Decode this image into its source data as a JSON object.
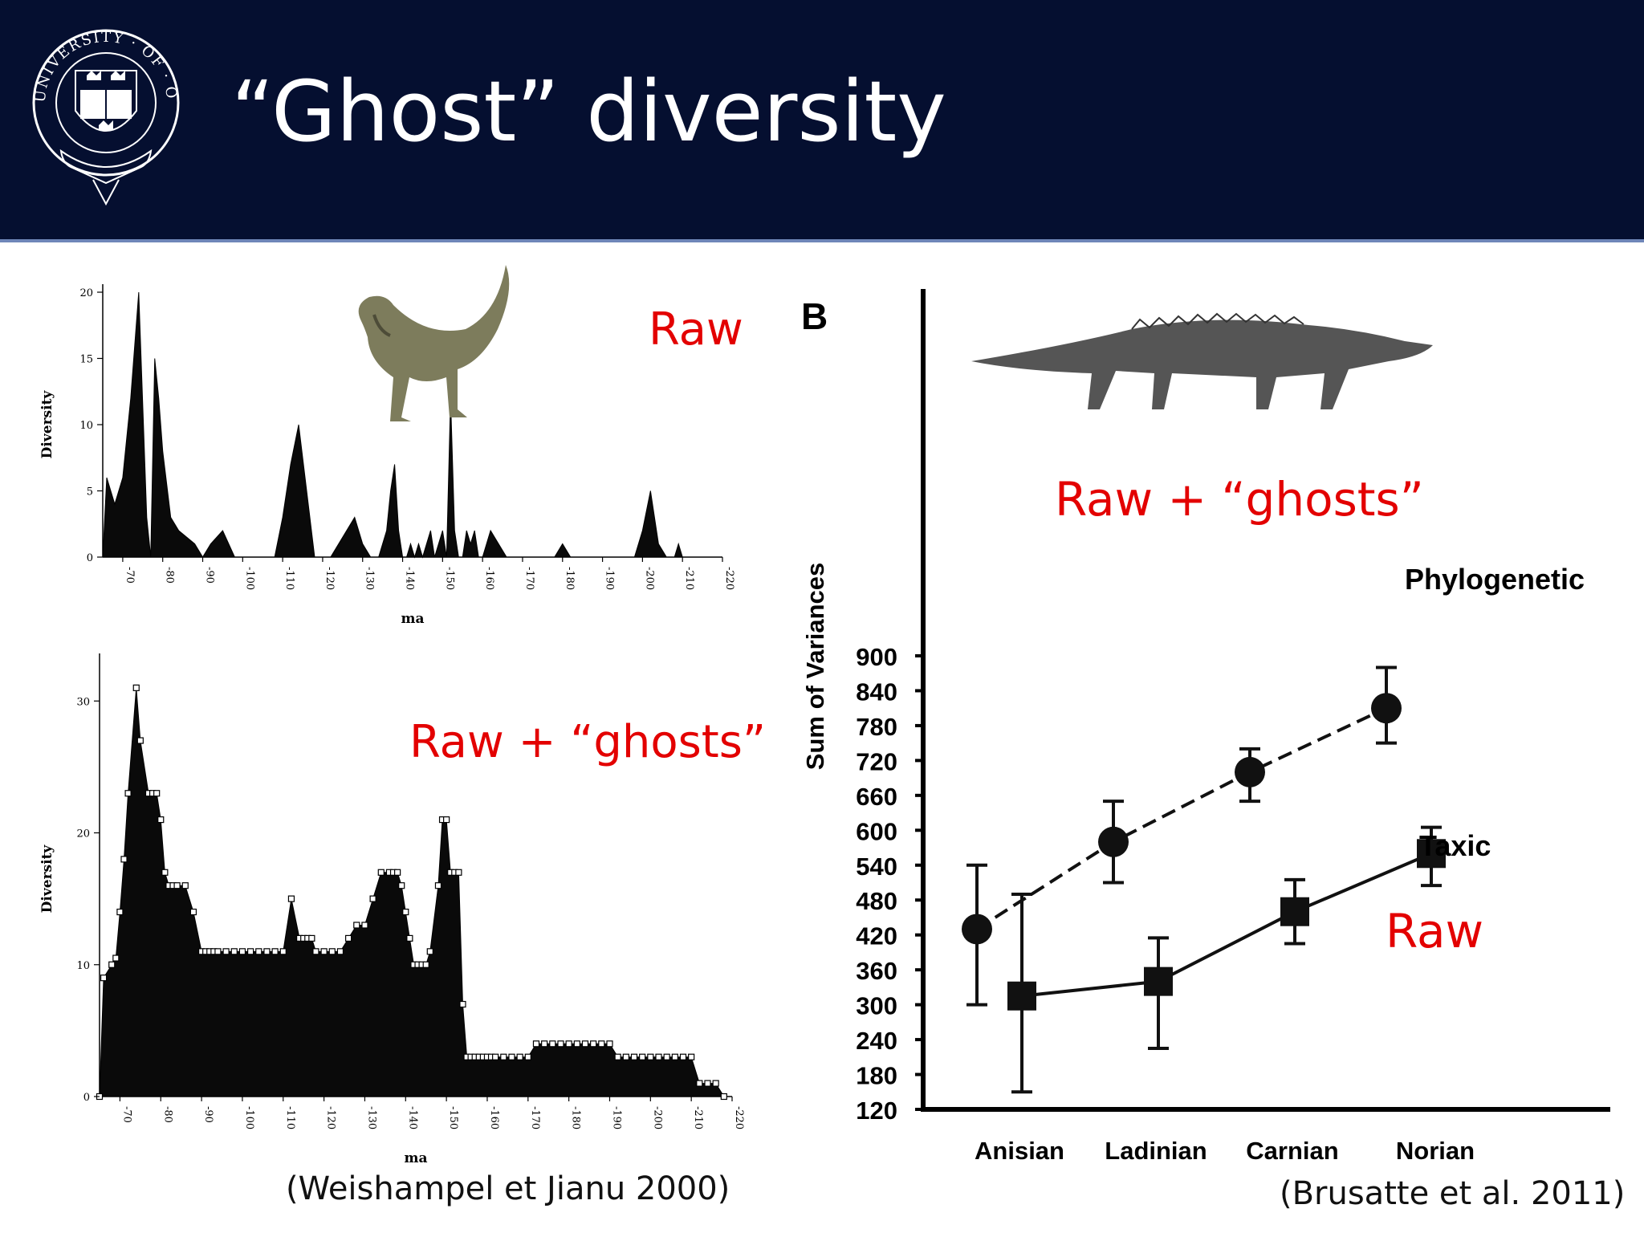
{
  "slide": {
    "title": "“Ghost” diversity",
    "logo_ring_text": "UNIVERSITY · OF · OXFORD",
    "logo_book_text": [
      "DOMI",
      "NVS",
      "ILLV",
      "MINA",
      "TIO",
      "MEA"
    ],
    "header_bg": "#050f30",
    "annotation_color": "#e30000"
  },
  "annotations": {
    "raw_top": "Raw",
    "ghosts_bottom": "Raw + “ghosts”",
    "ghosts_right": "Raw + “ghosts”",
    "raw_right": "Raw"
  },
  "citations": {
    "left": "(Weishampel et Jianu 2000)",
    "right": "(Brusatte et al. 2011)"
  },
  "chart_data": [
    {
      "type": "area",
      "xlabel": "ma",
      "ylabel": "Diversity",
      "xlim": [
        65,
        220
      ],
      "ylim": [
        0,
        20
      ],
      "x_ticks": [
        "70",
        "80",
        "90",
        "100",
        "110",
        "120",
        "130",
        "140",
        "150",
        "160",
        "170",
        "180",
        "190",
        "200",
        "210",
        "220"
      ],
      "y_ticks": [
        "0",
        "5",
        "10",
        "15",
        "20"
      ],
      "x": [
        65,
        66,
        68,
        70,
        72,
        74,
        76,
        77,
        78,
        79,
        80,
        82,
        84,
        88,
        90,
        92,
        95,
        98,
        100,
        101,
        102,
        103,
        104,
        106,
        108,
        110,
        112,
        114,
        116,
        118,
        120,
        121,
        122,
        124,
        126,
        128,
        130,
        132,
        133,
        134,
        136,
        137,
        138,
        139,
        140,
        141,
        142,
        143,
        144,
        145,
        146,
        147,
        148,
        149,
        150,
        151,
        152,
        153,
        154,
        155,
        156,
        157,
        158,
        159,
        160,
        162,
        164,
        166,
        168,
        170,
        175,
        178,
        180,
        182,
        184,
        186,
        188,
        190,
        192,
        194,
        196,
        198,
        200,
        202,
        204,
        206,
        207,
        208,
        209,
        210,
        212,
        215,
        220
      ],
      "values": [
        0,
        6,
        4,
        6,
        12,
        20,
        3,
        0,
        15,
        12,
        8,
        3,
        2,
        1,
        0,
        1,
        2,
        0,
        0,
        0,
        0,
        0,
        0,
        0,
        0,
        3,
        7,
        10,
        5,
        0,
        0,
        0,
        0,
        1,
        2,
        3,
        1,
        0,
        0,
        0,
        2,
        5,
        7,
        2,
        0,
        0,
        1,
        0,
        1,
        0,
        1,
        2,
        0,
        1,
        2,
        0,
        12,
        2,
        0,
        0,
        2,
        1,
        2,
        0,
        0,
        2,
        1,
        0,
        0,
        0,
        0,
        0,
        1,
        0,
        0,
        0,
        0,
        0,
        0,
        0,
        0,
        0,
        2,
        5,
        1,
        0,
        0,
        0,
        1,
        0,
        0,
        0,
        0
      ]
    },
    {
      "type": "area",
      "xlabel": "ma",
      "ylabel": "Diversity",
      "xlim": [
        65,
        220
      ],
      "ylim": [
        0,
        33
      ],
      "x_ticks": [
        "70",
        "80",
        "90",
        "100",
        "110",
        "120",
        "130",
        "140",
        "150",
        "160",
        "170",
        "180",
        "190",
        "200",
        "210",
        "220"
      ],
      "y_ticks": [
        "0",
        "10",
        "20",
        "30"
      ],
      "x": [
        65,
        66,
        68,
        69,
        70,
        71,
        72,
        74,
        75,
        77,
        78,
        79,
        80,
        81,
        82,
        83,
        84,
        86,
        88,
        90,
        91,
        92,
        93,
        94,
        96,
        98,
        100,
        102,
        104,
        106,
        108,
        110,
        112,
        114,
        115,
        116,
        117,
        118,
        120,
        122,
        124,
        126,
        128,
        130,
        132,
        134,
        136,
        137,
        138,
        139,
        140,
        141,
        142,
        143,
        144,
        145,
        146,
        148,
        149,
        150,
        151,
        152,
        153,
        154,
        155,
        156,
        157,
        158,
        159,
        160,
        161,
        162,
        164,
        166,
        168,
        170,
        172,
        174,
        176,
        178,
        180,
        182,
        184,
        186,
        188,
        190,
        192,
        194,
        196,
        198,
        200,
        202,
        204,
        206,
        208,
        210,
        212,
        214,
        216,
        218
      ],
      "values": [
        0,
        9,
        10,
        10.5,
        14,
        18,
        23,
        31,
        27,
        23,
        23,
        23,
        21,
        17,
        16,
        16,
        16,
        16,
        14,
        11,
        11,
        11,
        11,
        11,
        11,
        11,
        11,
        11,
        11,
        11,
        11,
        11,
        15,
        12,
        12,
        12,
        12,
        11,
        11,
        11,
        11,
        12,
        13,
        13,
        15,
        17,
        17,
        17,
        17,
        16,
        14,
        12,
        10,
        10,
        10,
        10,
        11,
        16,
        21,
        21,
        17,
        17,
        17,
        7,
        3,
        3,
        3,
        3,
        3,
        3,
        3,
        3,
        3,
        3,
        3,
        3,
        4,
        4,
        4,
        4,
        4,
        4,
        4,
        4,
        4,
        4,
        3,
        3,
        3,
        3,
        3,
        3,
        3,
        3,
        3,
        3,
        1,
        1,
        1,
        0
      ]
    },
    {
      "type": "line",
      "panel_label": "B",
      "ylabel": "Sum of Variances",
      "categories": [
        "Anisian",
        "Ladinian",
        "Carnian",
        "Norian"
      ],
      "ylim": [
        120,
        960
      ],
      "y_ticks": [
        "120",
        "180",
        "240",
        "300",
        "360",
        "420",
        "480",
        "540",
        "600",
        "660",
        "720",
        "780",
        "840",
        "900"
      ],
      "series": [
        {
          "name": "Phylogenetic",
          "style": "dashed",
          "marker": "circle",
          "values": [
            430,
            580,
            700,
            810
          ],
          "err_low": [
            300,
            510,
            650,
            750
          ],
          "err_high": [
            540,
            650,
            740,
            880
          ]
        },
        {
          "name": "Taxic",
          "style": "solid",
          "marker": "square",
          "values": [
            315,
            340,
            460,
            560
          ],
          "err_low": [
            150,
            225,
            405,
            505
          ],
          "err_high": [
            490,
            415,
            515,
            605
          ]
        }
      ]
    }
  ]
}
